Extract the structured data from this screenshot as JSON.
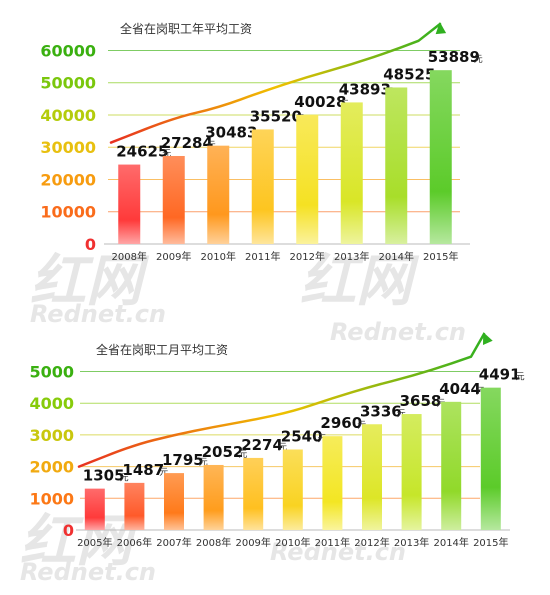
{
  "watermarks": [
    "红网",
    "Rednet.cn",
    "红网",
    "Rednet.cn",
    "红网",
    "Rednet.cn",
    "Rednet.cn"
  ],
  "colors": {
    "bar_gradient": [
      "#ff3a3a",
      "#ff7a1a",
      "#ffc020",
      "#f3e623",
      "#c6e62a",
      "#5ccb2a"
    ],
    "axis_tick_gradient": [
      "#f03030",
      "#ff8a10",
      "#e8c010",
      "#9ad20a",
      "#3ab010"
    ],
    "trend_start": "#e83020",
    "trend_mid": "#f0c000",
    "trend_end": "#30b020"
  },
  "chart_data": [
    {
      "type": "bar",
      "title": "全省在岗职工年平均工资",
      "categories": [
        "2008年",
        "2009年",
        "2010年",
        "2011年",
        "2012年",
        "2013年",
        "2014年",
        "2015年"
      ],
      "values": [
        24625,
        27284,
        30483,
        35520,
        40028,
        43893,
        48525,
        53889
      ],
      "value_labels": [
        "24625",
        "27284",
        "30483",
        "35520",
        "40028",
        "43893",
        "48525",
        "53889"
      ],
      "unit": "元",
      "yticks": [
        "0",
        "10000",
        "20000",
        "30000",
        "40000",
        "50000",
        "60000"
      ],
      "ytick_values": [
        0,
        10000,
        20000,
        30000,
        40000,
        50000,
        60000
      ],
      "ylim": [
        0,
        62000
      ],
      "grid": true,
      "trend_arrow": true
    },
    {
      "type": "bar",
      "title": "全省在岗职工月平均工资",
      "categories": [
        "2005年",
        "2006年",
        "2007年",
        "2008年",
        "2009年",
        "2010年",
        "2011年",
        "2012年",
        "2013年",
        "2014年",
        "2015年"
      ],
      "values": [
        1305,
        1487,
        1795,
        2052,
        2274,
        2540,
        2960,
        3336,
        3658,
        4044,
        4491
      ],
      "value_labels": [
        "1305",
        "1487",
        "1795",
        "2052",
        "2274",
        "2540",
        "2960",
        "3336",
        "3658",
        "4044",
        "4491"
      ],
      "unit": "元",
      "yticks": [
        "0",
        "1000",
        "2000",
        "3000",
        "4000",
        "5000"
      ],
      "ytick_values": [
        0,
        1000,
        2000,
        3000,
        4000,
        5000
      ],
      "ylim": [
        0,
        5300
      ],
      "grid": true,
      "trend_arrow": true
    }
  ]
}
